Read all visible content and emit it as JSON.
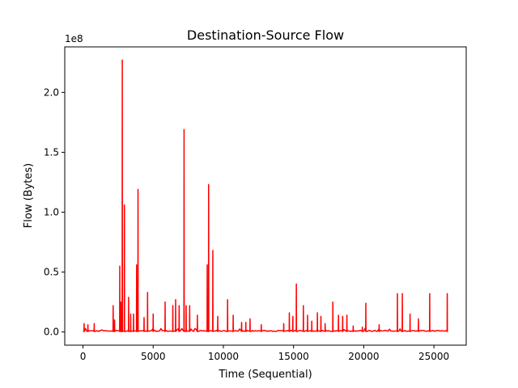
{
  "chart_data": {
    "type": "line",
    "title": "Destination-Source Flow",
    "xlabel": "Time (Sequential)",
    "ylabel": "Flow (Bytes)",
    "y_offset_label": "1e8",
    "xlim": [
      -1300,
      27300
    ],
    "ylim": [
      -0.11,
      2.38
    ],
    "y_scale_factor": 100000000,
    "x_ticks": [
      0,
      5000,
      10000,
      15000,
      20000,
      25000
    ],
    "x_tick_labels": [
      "0",
      "5000",
      "10000",
      "15000",
      "20000",
      "25000"
    ],
    "y_ticks": [
      0.0,
      0.5,
      1.0,
      1.5,
      2.0
    ],
    "y_tick_labels": [
      "0.0",
      "0.5",
      "1.0",
      "1.5",
      "2.0"
    ],
    "grid": false,
    "series_color": "#ff0000",
    "baseline": 0.005,
    "spikes": [
      [
        80,
        0.07
      ],
      [
        350,
        0.06
      ],
      [
        800,
        0.07
      ],
      [
        2150,
        0.22
      ],
      [
        2250,
        0.1
      ],
      [
        2620,
        0.55
      ],
      [
        2700,
        0.25
      ],
      [
        2800,
        2.27
      ],
      [
        2950,
        1.06
      ],
      [
        3250,
        0.29
      ],
      [
        3400,
        0.15
      ],
      [
        3600,
        0.15
      ],
      [
        3820,
        0.56
      ],
      [
        3920,
        1.19
      ],
      [
        4350,
        0.12
      ],
      [
        4600,
        0.33
      ],
      [
        5000,
        0.15
      ],
      [
        5850,
        0.25
      ],
      [
        6400,
        0.22
      ],
      [
        6600,
        0.27
      ],
      [
        6850,
        0.22
      ],
      [
        7200,
        1.69
      ],
      [
        7350,
        0.22
      ],
      [
        7600,
        0.22
      ],
      [
        8150,
        0.14
      ],
      [
        8850,
        0.56
      ],
      [
        8950,
        1.23
      ],
      [
        9250,
        0.68
      ],
      [
        9600,
        0.13
      ],
      [
        10300,
        0.27
      ],
      [
        10700,
        0.14
      ],
      [
        11300,
        0.08
      ],
      [
        11600,
        0.08
      ],
      [
        11900,
        0.11
      ],
      [
        12700,
        0.06
      ],
      [
        14300,
        0.07
      ],
      [
        14700,
        0.16
      ],
      [
        14950,
        0.13
      ],
      [
        15200,
        0.4
      ],
      [
        15700,
        0.22
      ],
      [
        16000,
        0.14
      ],
      [
        16300,
        0.09
      ],
      [
        16700,
        0.16
      ],
      [
        16950,
        0.13
      ],
      [
        17250,
        0.07
      ],
      [
        17800,
        0.25
      ],
      [
        18200,
        0.14
      ],
      [
        18500,
        0.13
      ],
      [
        18800,
        0.14
      ],
      [
        19250,
        0.05
      ],
      [
        19900,
        0.04
      ],
      [
        20150,
        0.24
      ],
      [
        21100,
        0.06
      ],
      [
        22400,
        0.32
      ],
      [
        22750,
        0.32
      ],
      [
        23300,
        0.15
      ],
      [
        23900,
        0.11
      ],
      [
        24700,
        0.32
      ],
      [
        25950,
        0.32
      ]
    ]
  }
}
